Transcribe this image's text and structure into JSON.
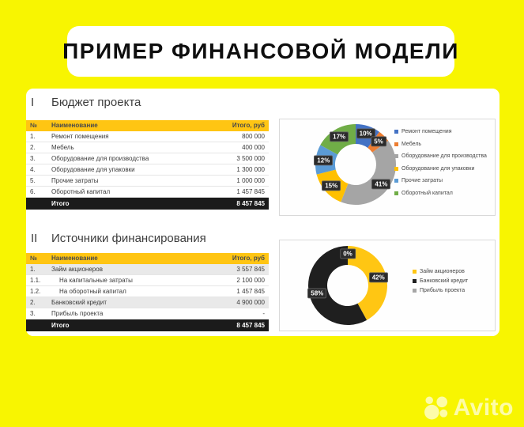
{
  "page": {
    "title": "ПРИМЕР ФИНАНСОВОЙ МОДЕЛИ",
    "watermark_text": "Avito"
  },
  "colors": {
    "background_yellow": "#F8F501",
    "table_header_gold": "#FFC513",
    "total_row_black": "#1B1B1B",
    "percent_badge": "#2B2B2B"
  },
  "sections": [
    {
      "numeral": "I",
      "title": "Бюджет проекта",
      "table": {
        "col_num": "№",
        "col_name": "Наименование",
        "col_total": "Итого, руб",
        "rows": [
          {
            "num": "1.",
            "name": "Ремонт помещения",
            "value": "800 000",
            "indent": false,
            "shaded": false
          },
          {
            "num": "2.",
            "name": "Мебель",
            "value": "400 000",
            "indent": false,
            "shaded": false
          },
          {
            "num": "3.",
            "name": "Оборудование для производства",
            "value": "3 500 000",
            "indent": false,
            "shaded": false
          },
          {
            "num": "4.",
            "name": "Оборудование для упаковки",
            "value": "1 300 000",
            "indent": false,
            "shaded": false
          },
          {
            "num": "5.",
            "name": "Прочие затраты",
            "value": "1 000 000",
            "indent": false,
            "shaded": false
          },
          {
            "num": "6.",
            "name": "Оборотный капитал",
            "value": "1 457 845",
            "indent": false,
            "shaded": false
          }
        ],
        "total_label": "Итого",
        "total_value": "8 457 845"
      }
    },
    {
      "numeral": "II",
      "title": "Источники финансирования",
      "table": {
        "col_num": "№",
        "col_name": "Наименование",
        "col_total": "Итого, руб",
        "rows": [
          {
            "num": "1.",
            "name": "Займ акционеров",
            "value": "3 557 845",
            "indent": false,
            "shaded": true
          },
          {
            "num": "1.1.",
            "name": "На капитальные затраты",
            "value": "2 100 000",
            "indent": true,
            "shaded": false
          },
          {
            "num": "1.2.",
            "name": "На оборотный капитал",
            "value": "1 457 845",
            "indent": true,
            "shaded": false
          },
          {
            "num": "2.",
            "name": "Банковский кредит",
            "value": "4 900 000",
            "indent": false,
            "shaded": true
          },
          {
            "num": "3.",
            "name": "Прибыль проекта",
            "value": "-",
            "indent": false,
            "shaded": false
          }
        ],
        "total_label": "Итого",
        "total_value": "8 457 845"
      }
    }
  ],
  "chart_data": [
    {
      "type": "pie",
      "donut": true,
      "title": "Бюджет проекта",
      "unit": "%",
      "labels": [
        "Ремонт помещения",
        "Мебель",
        "Оборудование для производства",
        "Оборудование для упаковки",
        "Прочие затраты",
        "Оборотный капитал"
      ],
      "values": [
        10,
        5,
        41,
        15,
        12,
        17
      ],
      "colors": [
        "#4472C4",
        "#ED7D31",
        "#A5A5A5",
        "#FFC000",
        "#5B9BD5",
        "#70AD47"
      ],
      "legend_position": "right",
      "start_angle": "top",
      "direction": "clockwise"
    },
    {
      "type": "pie",
      "donut": true,
      "title": "Источники финансирования",
      "unit": "%",
      "labels": [
        "Займ акционеров",
        "Банковский кредит",
        "Прибыль проекта"
      ],
      "values": [
        42,
        58,
        0
      ],
      "colors": [
        "#FFC613",
        "#1F1F1F",
        "#A6A6A6"
      ],
      "legend_position": "right",
      "start_angle": "top",
      "direction": "clockwise"
    }
  ]
}
